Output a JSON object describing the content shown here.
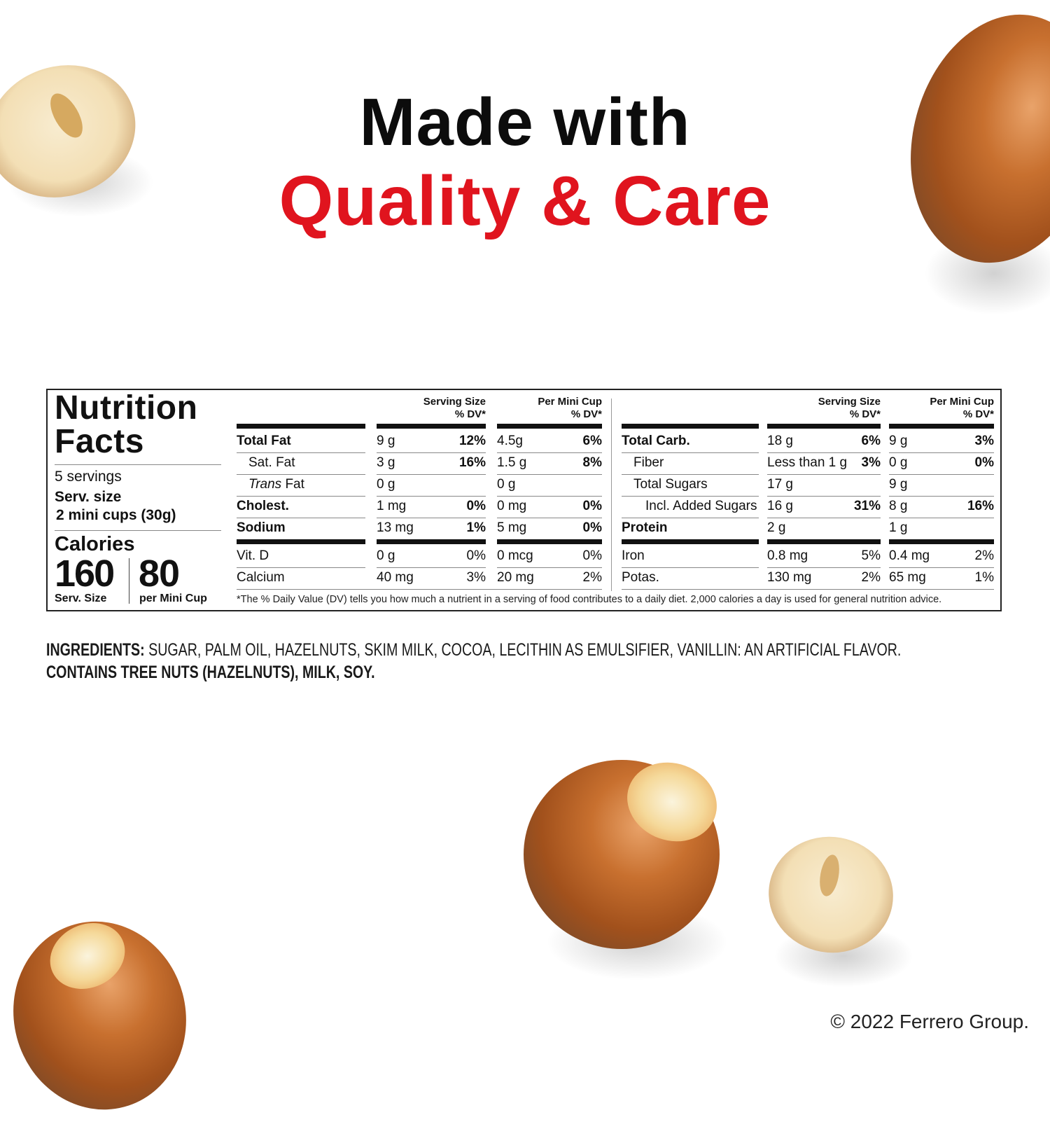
{
  "headline": {
    "line1": "Made with",
    "line2": "Quality & Care",
    "accent_color": "#e0141e"
  },
  "nutrition": {
    "title_line1": "Nutrition",
    "title_line2": "Facts",
    "servings": "5 servings",
    "serv_size_label": "Serv. size",
    "serv_size_value": "2 mini cups (30g)",
    "calories_label": "Calories",
    "calories_serving": "160",
    "calories_serving_label": "Serv. Size",
    "calories_cup": "80",
    "calories_cup_label": "per Mini Cup",
    "col_header_serving": [
      "Serving Size",
      "% DV*"
    ],
    "col_header_cup": [
      "Per Mini Cup",
      "% DV*"
    ],
    "left_rows": [
      {
        "label": "Total Fat",
        "bold": true,
        "indent": 0,
        "ss_amount": "9 g",
        "ss_dv": "12%",
        "mc_amount": "4.5g",
        "mc_dv": "6%",
        "dv_bold": true
      },
      {
        "label": "Sat. Fat",
        "bold": false,
        "indent": 1,
        "ss_amount": "3 g",
        "ss_dv": "16%",
        "mc_amount": "1.5 g",
        "mc_dv": "8%",
        "dv_bold": true
      },
      {
        "label_italic": "Trans",
        "label": " Fat",
        "bold": false,
        "indent": 1,
        "ss_amount": "0 g",
        "ss_dv": "",
        "mc_amount": "0 g",
        "mc_dv": "",
        "dv_bold": true
      },
      {
        "label": "Cholest.",
        "bold": true,
        "indent": 0,
        "ss_amount": "1 mg",
        "ss_dv": "0%",
        "mc_amount": "0 mg",
        "mc_dv": "0%",
        "dv_bold": true
      },
      {
        "label": "Sodium",
        "bold": true,
        "indent": 0,
        "ss_amount": "13 mg",
        "ss_dv": "1%",
        "mc_amount": "5 mg",
        "mc_dv": "0%",
        "dv_bold": true
      },
      {
        "label": "Vit. D",
        "bold": false,
        "indent": 0,
        "ss_amount": "0 g",
        "ss_dv": "0%",
        "mc_amount": "0 mcg",
        "mc_dv": "0%",
        "dv_bold": false
      },
      {
        "label": "Calcium",
        "bold": false,
        "indent": 0,
        "ss_amount": "40 mg",
        "ss_dv": "3%",
        "mc_amount": "20 mg",
        "mc_dv": "2%",
        "dv_bold": false
      }
    ],
    "right_rows": [
      {
        "label": "Total Carb.",
        "bold": true,
        "indent": 0,
        "ss_amount": "18 g",
        "ss_dv": "6%",
        "mc_amount": "9 g",
        "mc_dv": "3%",
        "dv_bold": true
      },
      {
        "label": "Fiber",
        "bold": false,
        "indent": 1,
        "ss_amount": "Less than 1 g",
        "ss_dv": "3%",
        "mc_amount": "0 g",
        "mc_dv": "0%",
        "dv_bold": true
      },
      {
        "label": "Total Sugars",
        "bold": false,
        "indent": 1,
        "ss_amount": "17 g",
        "ss_dv": "",
        "mc_amount": "9 g",
        "mc_dv": "",
        "dv_bold": true
      },
      {
        "label": "Incl. Added Sugars",
        "bold": false,
        "indent": 2,
        "ss_amount": "16 g",
        "ss_dv": "31%",
        "mc_amount": "8 g",
        "mc_dv": "16%",
        "dv_bold": true
      },
      {
        "label": "Protein",
        "bold": true,
        "indent": 0,
        "ss_amount": "2 g",
        "ss_dv": "",
        "mc_amount": "1 g",
        "mc_dv": "",
        "dv_bold": true
      },
      {
        "label": "Iron",
        "bold": false,
        "indent": 0,
        "ss_amount": "0.8 mg",
        "ss_dv": "5%",
        "mc_amount": "0.4 mg",
        "mc_dv": "2%",
        "dv_bold": false
      },
      {
        "label": "Potas.",
        "bold": false,
        "indent": 0,
        "ss_amount": "130 mg",
        "ss_dv": "2%",
        "mc_amount": "65 mg",
        "mc_dv": "1%",
        "dv_bold": false
      }
    ],
    "footnote": "*The % Daily Value (DV) tells you how much a nutrient in a serving of food contributes to a daily diet. 2,000 calories a day is used for general nutrition advice."
  },
  "ingredients": {
    "label": "INGREDIENTS:",
    "text": " SUGAR, PALM OIL, HAZELNUTS, SKIM MILK, COCOA, LECITHIN AS EMULSIFIER, VANILLIN: AN ARTIFICIAL FLAVOR.",
    "contains": "CONTAINS TREE NUTS (HAZELNUTS), MILK, SOY."
  },
  "copyright": "© 2022 Ferrero Group."
}
